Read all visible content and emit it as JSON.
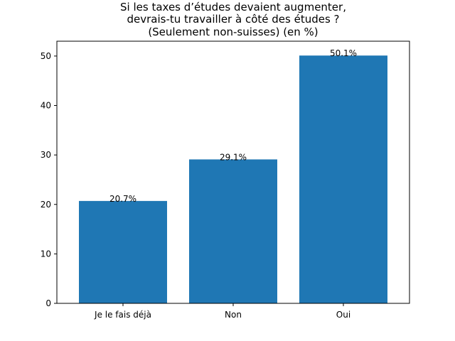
{
  "chart_data": {
    "type": "bar",
    "title": "Si les taxes d’études devaient augmenter,\ndevrais-tu travailler à côté des études ?\n(Seulement non-suisses) (en %)",
    "title_lines": [
      "Si les taxes d’études devaient augmenter,",
      "devrais-tu travailler à côté des études ?",
      "(Seulement non-suisses) (en %)"
    ],
    "categories": [
      "Je le fais déjà",
      "Non",
      "Oui"
    ],
    "values": [
      20.7,
      29.1,
      50.1
    ],
    "data_labels": [
      "20.7%",
      "29.1%",
      "50.1%"
    ],
    "xlabel": "",
    "ylabel": "",
    "ylim": [
      0,
      53
    ],
    "yticks": [
      0,
      10,
      20,
      30,
      40,
      50
    ],
    "grid": false,
    "bar_color": "#1f77b4"
  }
}
